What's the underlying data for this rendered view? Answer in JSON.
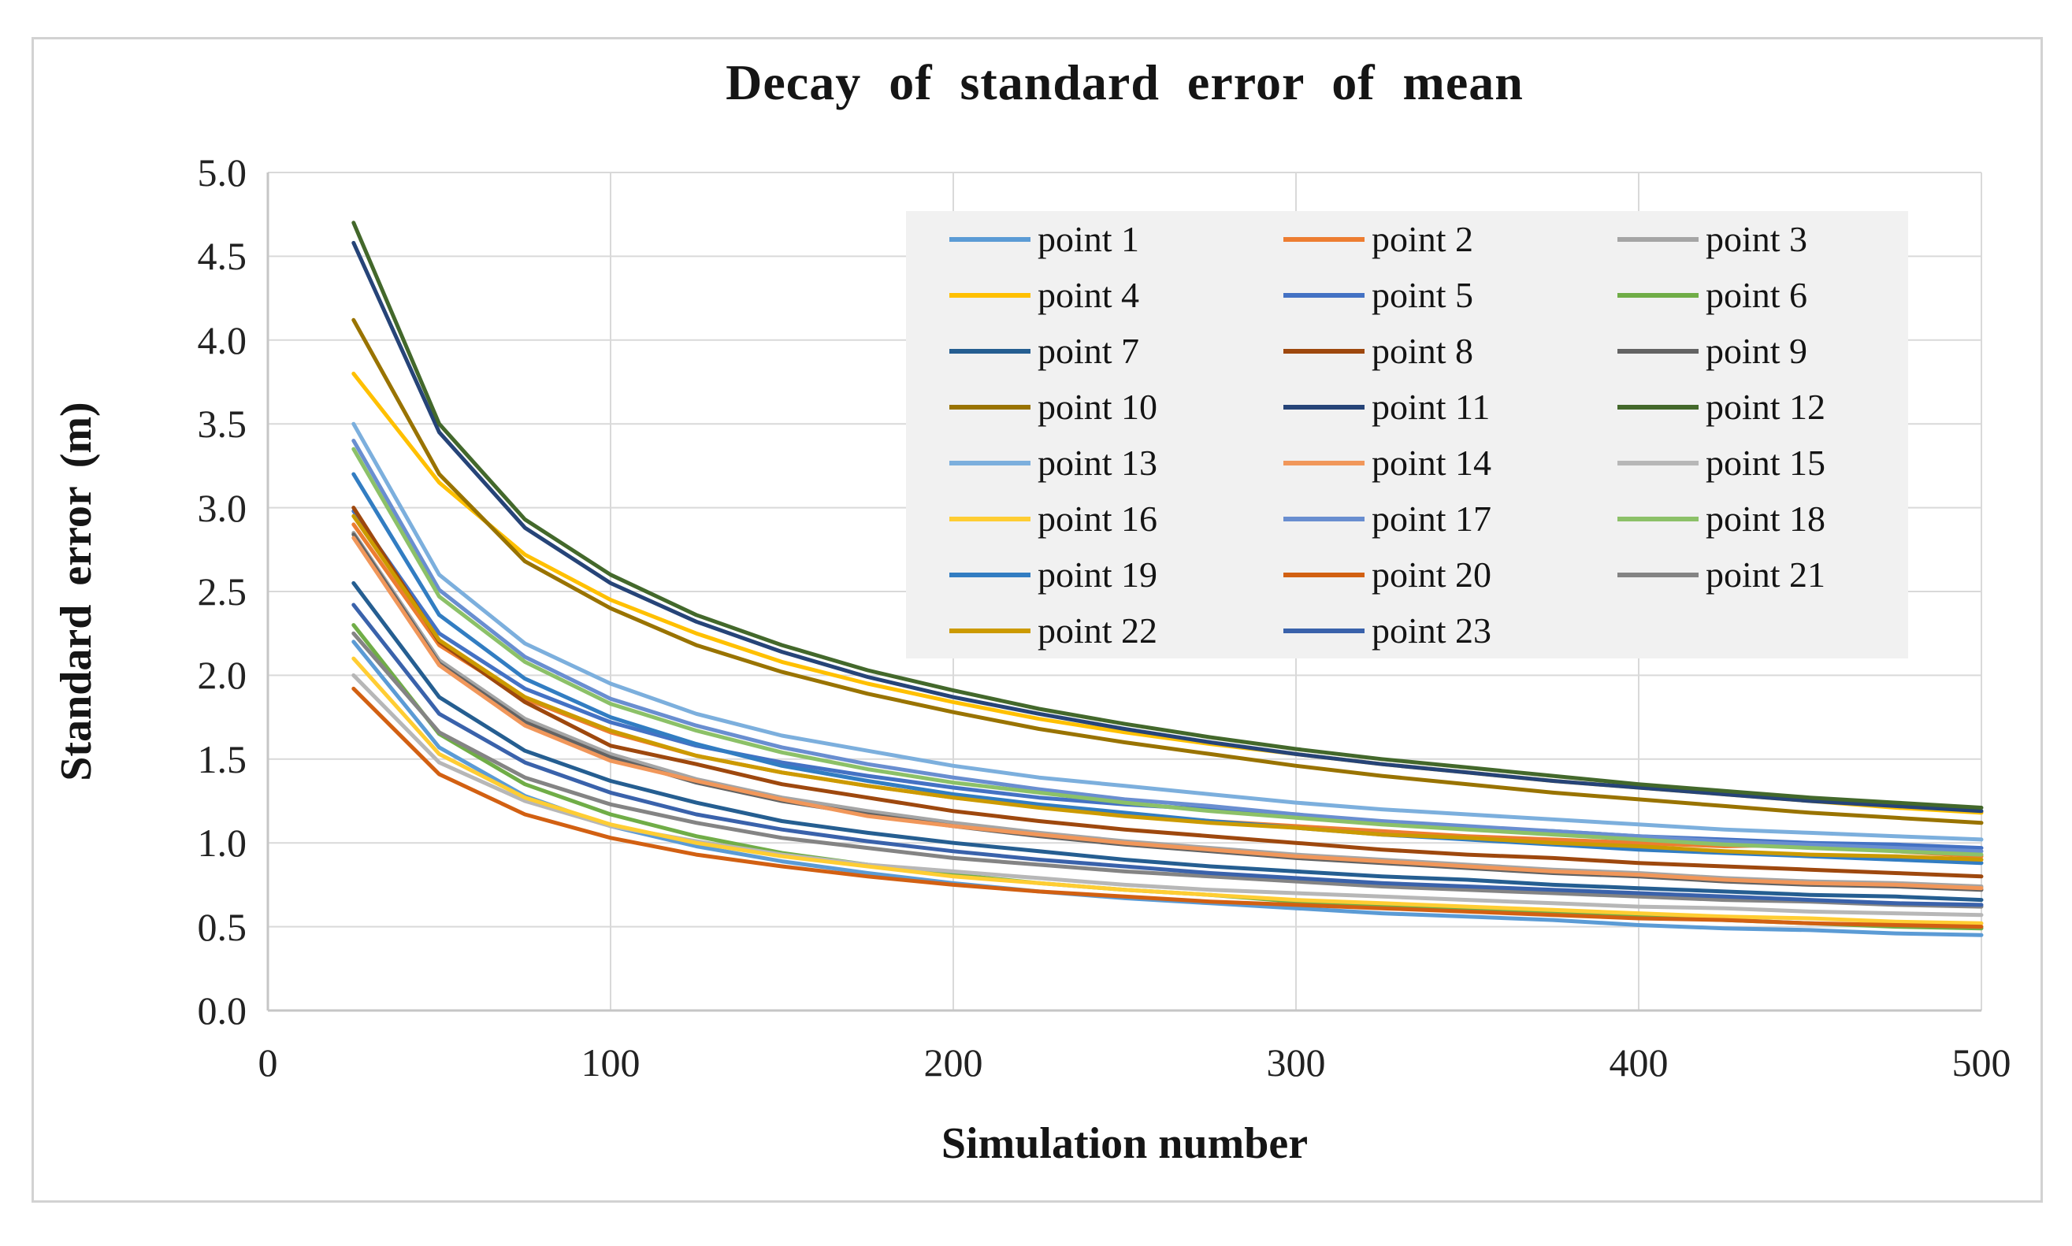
{
  "chart_data": {
    "type": "line",
    "title": "Decay of standard error of mean",
    "xlabel": "Simulation number",
    "ylabel": "Standard error (m)",
    "xlim": [
      0,
      500
    ],
    "ylim": [
      0.0,
      5.0
    ],
    "x_ticks": [
      0,
      100,
      200,
      300,
      400,
      500
    ],
    "y_ticks": [
      0.0,
      0.5,
      1.0,
      1.5,
      2.0,
      2.5,
      3.0,
      3.5,
      4.0,
      4.5,
      5.0
    ],
    "grid": true,
    "legend_position": "inside-upper-right",
    "legend_background": "#f1f1f1",
    "gridline_color": "#d9d9d9",
    "axis_line_color": "#c6c6c6",
    "x": [
      25,
      50,
      75,
      100,
      125,
      150,
      175,
      200,
      225,
      250,
      275,
      300,
      325,
      350,
      375,
      400,
      425,
      450,
      475,
      500
    ],
    "series": [
      {
        "name": "point 1",
        "color": "#5B9BD5",
        "values": [
          2.2,
          1.57,
          1.28,
          1.1,
          0.98,
          0.89,
          0.82,
          0.76,
          0.71,
          0.67,
          0.64,
          0.61,
          0.58,
          0.56,
          0.54,
          0.51,
          0.49,
          0.48,
          0.46,
          0.45
        ]
      },
      {
        "name": "point 2",
        "color": "#ED7D31",
        "values": [
          2.9,
          2.18,
          1.86,
          1.66,
          1.52,
          1.42,
          1.34,
          1.27,
          1.22,
          1.17,
          1.13,
          1.1,
          1.07,
          1.04,
          1.02,
          1.0,
          0.98,
          0.99,
          0.95,
          0.92
        ]
      },
      {
        "name": "point 3",
        "color": "#A5A5A5",
        "values": [
          2.85,
          2.09,
          1.74,
          1.53,
          1.38,
          1.27,
          1.19,
          1.12,
          1.06,
          1.01,
          0.97,
          0.93,
          0.9,
          0.87,
          0.84,
          0.82,
          0.79,
          0.77,
          0.76,
          0.74
        ]
      },
      {
        "name": "point 4",
        "color": "#FFC000",
        "values": [
          3.8,
          3.15,
          2.72,
          2.45,
          2.25,
          2.08,
          1.95,
          1.84,
          1.74,
          1.66,
          1.59,
          1.53,
          1.47,
          1.42,
          1.37,
          1.33,
          1.29,
          1.25,
          1.21,
          1.18
        ]
      },
      {
        "name": "point 5",
        "color": "#4472C4",
        "values": [
          2.98,
          2.25,
          1.92,
          1.72,
          1.58,
          1.48,
          1.4,
          1.33,
          1.27,
          1.23,
          1.2,
          1.17,
          1.12,
          1.09,
          1.07,
          1.04,
          1.02,
          1.0,
          0.99,
          0.97
        ]
      },
      {
        "name": "point 6",
        "color": "#70AD47",
        "values": [
          2.3,
          1.65,
          1.35,
          1.17,
          1.04,
          0.94,
          0.87,
          0.81,
          0.76,
          0.72,
          0.69,
          0.65,
          0.62,
          0.6,
          0.58,
          0.56,
          0.54,
          0.52,
          0.5,
          0.49
        ]
      },
      {
        "name": "point 7",
        "color": "#255E91",
        "values": [
          2.55,
          1.87,
          1.55,
          1.37,
          1.24,
          1.13,
          1.06,
          1.0,
          0.95,
          0.9,
          0.86,
          0.83,
          0.8,
          0.78,
          0.75,
          0.73,
          0.71,
          0.69,
          0.68,
          0.66
        ]
      },
      {
        "name": "point 8",
        "color": "#9E480E",
        "values": [
          3.0,
          2.2,
          1.84,
          1.58,
          1.47,
          1.35,
          1.27,
          1.19,
          1.13,
          1.08,
          1.04,
          1.0,
          0.96,
          0.93,
          0.91,
          0.88,
          0.86,
          0.84,
          0.82,
          0.8
        ]
      },
      {
        "name": "point 9",
        "color": "#636363",
        "values": [
          2.84,
          2.07,
          1.72,
          1.51,
          1.36,
          1.25,
          1.17,
          1.1,
          1.04,
          0.99,
          0.95,
          0.91,
          0.88,
          0.85,
          0.82,
          0.8,
          0.77,
          0.75,
          0.74,
          0.72
        ]
      },
      {
        "name": "point 10",
        "color": "#997300",
        "values": [
          4.12,
          3.2,
          2.68,
          2.4,
          2.18,
          2.02,
          1.89,
          1.78,
          1.68,
          1.6,
          1.53,
          1.46,
          1.4,
          1.35,
          1.3,
          1.26,
          1.22,
          1.18,
          1.15,
          1.12
        ]
      },
      {
        "name": "point 11",
        "color": "#264478",
        "values": [
          4.58,
          3.45,
          2.88,
          2.55,
          2.32,
          2.14,
          1.99,
          1.87,
          1.77,
          1.68,
          1.6,
          1.53,
          1.47,
          1.42,
          1.37,
          1.33,
          1.29,
          1.25,
          1.22,
          1.19
        ]
      },
      {
        "name": "point 12",
        "color": "#43682B",
        "values": [
          4.7,
          3.5,
          2.93,
          2.6,
          2.36,
          2.18,
          2.03,
          1.91,
          1.8,
          1.71,
          1.63,
          1.56,
          1.5,
          1.45,
          1.4,
          1.35,
          1.31,
          1.27,
          1.24,
          1.21
        ]
      },
      {
        "name": "point 13",
        "color": "#7CAFDD",
        "values": [
          3.5,
          2.6,
          2.19,
          1.95,
          1.77,
          1.64,
          1.55,
          1.46,
          1.39,
          1.34,
          1.29,
          1.24,
          1.2,
          1.17,
          1.14,
          1.11,
          1.08,
          1.06,
          1.04,
          1.02
        ]
      },
      {
        "name": "point 14",
        "color": "#F1975A",
        "values": [
          2.82,
          2.06,
          1.7,
          1.49,
          1.37,
          1.26,
          1.16,
          1.1,
          1.05,
          1.0,
          0.96,
          0.92,
          0.89,
          0.86,
          0.83,
          0.81,
          0.78,
          0.76,
          0.75,
          0.73
        ]
      },
      {
        "name": "point 15",
        "color": "#B7B7B7",
        "values": [
          2.0,
          1.48,
          1.25,
          1.1,
          1.01,
          0.93,
          0.87,
          0.83,
          0.79,
          0.75,
          0.72,
          0.7,
          0.68,
          0.66,
          0.64,
          0.62,
          0.61,
          0.59,
          0.58,
          0.57
        ]
      },
      {
        "name": "point 16",
        "color": "#FFCD33",
        "values": [
          2.1,
          1.53,
          1.27,
          1.11,
          1.0,
          0.92,
          0.86,
          0.8,
          0.76,
          0.72,
          0.69,
          0.66,
          0.64,
          0.62,
          0.6,
          0.58,
          0.56,
          0.55,
          0.53,
          0.52
        ]
      },
      {
        "name": "point 17",
        "color": "#698ED0",
        "values": [
          3.4,
          2.51,
          2.11,
          1.86,
          1.7,
          1.57,
          1.47,
          1.39,
          1.32,
          1.26,
          1.22,
          1.17,
          1.13,
          1.1,
          1.07,
          1.04,
          1.01,
          0.99,
          0.97,
          0.95
        ]
      },
      {
        "name": "point 18",
        "color": "#8CC168",
        "values": [
          3.35,
          2.47,
          2.08,
          1.83,
          1.67,
          1.54,
          1.44,
          1.36,
          1.3,
          1.24,
          1.19,
          1.15,
          1.11,
          1.08,
          1.05,
          1.02,
          0.99,
          0.97,
          0.95,
          0.93
        ]
      },
      {
        "name": "point 19",
        "color": "#327DC2",
        "values": [
          3.2,
          2.36,
          1.98,
          1.75,
          1.59,
          1.46,
          1.37,
          1.29,
          1.23,
          1.18,
          1.13,
          1.09,
          1.05,
          1.02,
          0.99,
          0.96,
          0.94,
          0.92,
          0.9,
          0.88
        ]
      },
      {
        "name": "point 20",
        "color": "#D26012",
        "values": [
          1.92,
          1.41,
          1.17,
          1.03,
          0.93,
          0.86,
          0.8,
          0.75,
          0.71,
          0.68,
          0.65,
          0.63,
          0.61,
          0.59,
          0.57,
          0.55,
          0.54,
          0.52,
          0.51,
          0.5
        ]
      },
      {
        "name": "point 21",
        "color": "#848484",
        "values": [
          2.25,
          1.66,
          1.39,
          1.23,
          1.12,
          1.03,
          0.97,
          0.91,
          0.87,
          0.83,
          0.8,
          0.77,
          0.74,
          0.72,
          0.7,
          0.68,
          0.66,
          0.65,
          0.63,
          0.62
        ]
      },
      {
        "name": "point 22",
        "color": "#CC9A00",
        "values": [
          2.95,
          2.21,
          1.87,
          1.67,
          1.52,
          1.42,
          1.34,
          1.27,
          1.21,
          1.16,
          1.12,
          1.09,
          1.05,
          1.03,
          1.0,
          0.98,
          0.95,
          0.93,
          0.92,
          0.9
        ]
      },
      {
        "name": "point 23",
        "color": "#3A62AB",
        "values": [
          2.42,
          1.77,
          1.48,
          1.3,
          1.17,
          1.08,
          1.01,
          0.95,
          0.9,
          0.86,
          0.82,
          0.79,
          0.76,
          0.74,
          0.72,
          0.7,
          0.68,
          0.66,
          0.64,
          0.63
        ]
      }
    ]
  }
}
